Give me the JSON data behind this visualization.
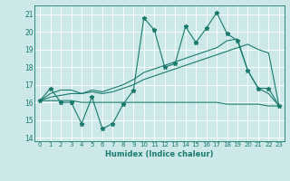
{
  "xlabel": "Humidex (Indice chaleur)",
  "x_values": [
    0,
    1,
    2,
    3,
    4,
    5,
    6,
    7,
    8,
    9,
    10,
    11,
    12,
    13,
    14,
    15,
    16,
    17,
    18,
    19,
    20,
    21,
    22,
    23
  ],
  "line1_y": [
    16.1,
    16.8,
    16.0,
    16.0,
    14.8,
    16.3,
    14.5,
    14.8,
    15.9,
    16.7,
    20.8,
    20.1,
    18.0,
    18.2,
    20.3,
    19.4,
    20.2,
    21.1,
    19.9,
    19.5,
    17.8,
    16.8,
    16.8,
    15.8
  ],
  "line2_y": [
    16.1,
    16.1,
    16.1,
    16.1,
    16.0,
    16.0,
    16.0,
    16.0,
    16.0,
    16.0,
    16.0,
    16.0,
    16.0,
    16.0,
    16.0,
    16.0,
    16.0,
    16.0,
    15.9,
    15.9,
    15.9,
    15.9,
    15.8,
    15.8
  ],
  "line3_y": [
    16.1,
    16.3,
    16.4,
    16.5,
    16.5,
    16.6,
    16.5,
    16.6,
    16.8,
    17.0,
    17.3,
    17.5,
    17.7,
    17.9,
    18.1,
    18.3,
    18.5,
    18.7,
    18.9,
    19.1,
    19.3,
    19.0,
    18.8,
    15.8
  ],
  "line4_y": [
    16.1,
    16.5,
    16.7,
    16.7,
    16.5,
    16.7,
    16.6,
    16.8,
    17.0,
    17.3,
    17.7,
    17.9,
    18.1,
    18.3,
    18.5,
    18.7,
    18.9,
    19.1,
    19.5,
    19.6,
    17.8,
    16.8,
    16.5,
    15.8
  ],
  "line_color": "#1a7a6e",
  "bg_color": "#cce8e8",
  "grid_color": "#b0d8d8",
  "ylim": [
    13.8,
    21.5
  ],
  "yticks": [
    14,
    15,
    16,
    17,
    18,
    19,
    20,
    21
  ],
  "xlim": [
    -0.5,
    23.5
  ]
}
